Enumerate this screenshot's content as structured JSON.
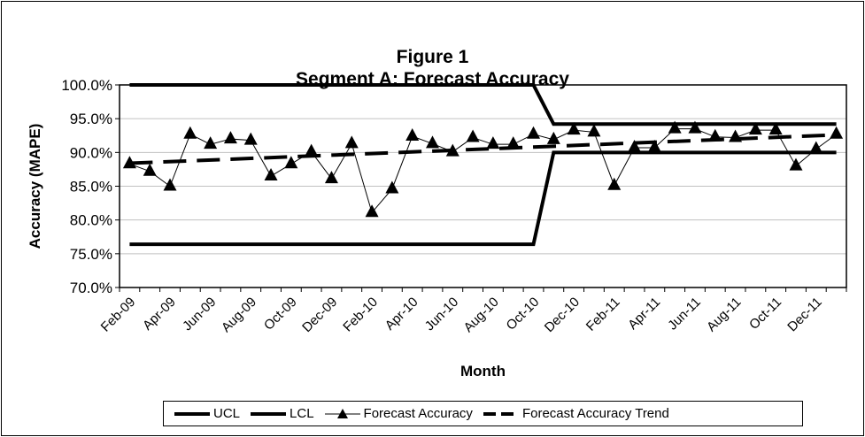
{
  "chart_data": {
    "type": "line",
    "title": "Figure 1",
    "subtitle": "Segment A: Forecast Accuracy",
    "xlabel": "Month",
    "ylabel": "Accuracy (MAPE)",
    "ylim": [
      70,
      100
    ],
    "yticks": [
      "70.0%",
      "75.0%",
      "80.0%",
      "85.0%",
      "90.0%",
      "95.0%",
      "100.0%"
    ],
    "grid": true,
    "legend_position": "bottom",
    "categories": [
      "Feb-09",
      "Mar-09",
      "Apr-09",
      "May-09",
      "Jun-09",
      "Jul-09",
      "Aug-09",
      "Sep-09",
      "Oct-09",
      "Nov-09",
      "Dec-09",
      "Jan-10",
      "Feb-10",
      "Mar-10",
      "Apr-10",
      "May-10",
      "Jun-10",
      "Jul-10",
      "Aug-10",
      "Sep-10",
      "Oct-10",
      "Nov-10",
      "Dec-10",
      "Jan-11",
      "Feb-11",
      "Mar-11",
      "Apr-11",
      "May-11",
      "Jun-11",
      "Jul-11",
      "Aug-11",
      "Sep-11",
      "Oct-11",
      "Nov-11",
      "Dec-11",
      "Jan-12"
    ],
    "tick_labels": [
      "Feb-09",
      "Apr-09",
      "Jun-09",
      "Aug-09",
      "Oct-09",
      "Dec-09",
      "Feb-10",
      "Apr-10",
      "Jun-10",
      "Aug-10",
      "Oct-10",
      "Dec-10",
      "Feb-11",
      "Apr-11",
      "Jun-11",
      "Aug-11",
      "Oct-11",
      "Dec-11"
    ],
    "series": [
      {
        "name": "UCL",
        "style": "solid-thick",
        "values": [
          100,
          100,
          100,
          100,
          100,
          100,
          100,
          100,
          100,
          100,
          100,
          100,
          100,
          100,
          100,
          100,
          100,
          100,
          100,
          100,
          100,
          94.2,
          94.2,
          94.2,
          94.2,
          94.2,
          94.2,
          94.2,
          94.2,
          94.2,
          94.2,
          94.2,
          94.2,
          94.2,
          94.2,
          94.2
        ]
      },
      {
        "name": "LCL",
        "style": "solid-thick",
        "values": [
          76.4,
          76.4,
          76.4,
          76.4,
          76.4,
          76.4,
          76.4,
          76.4,
          76.4,
          76.4,
          76.4,
          76.4,
          76.4,
          76.4,
          76.4,
          76.4,
          76.4,
          76.4,
          76.4,
          76.4,
          76.4,
          90.0,
          90.0,
          90.0,
          90.0,
          90.0,
          90.0,
          90.0,
          90.0,
          90.0,
          90.0,
          90.0,
          90.0,
          90.0,
          90.0,
          90.0
        ]
      },
      {
        "name": "Forecast Accuracy",
        "style": "thin-triangle",
        "values": [
          88.3,
          87.2,
          85.0,
          92.7,
          91.2,
          92.0,
          91.8,
          86.5,
          88.3,
          90.1,
          86.1,
          91.3,
          81.1,
          84.6,
          92.4,
          91.3,
          90.1,
          92.2,
          91.2,
          91.2,
          92.7,
          91.9,
          93.3,
          93.0,
          85.1,
          90.7,
          90.7,
          93.5,
          93.5,
          92.3,
          92.2,
          93.3,
          93.3,
          88.0,
          90.5,
          92.7
        ]
      },
      {
        "name": "Forecast Accuracy Trend",
        "style": "dashed",
        "values_linear": [
          88.4,
          92.6
        ]
      }
    ],
    "colors": {
      "line": "#000000",
      "grid": "#c0c0c0"
    }
  }
}
